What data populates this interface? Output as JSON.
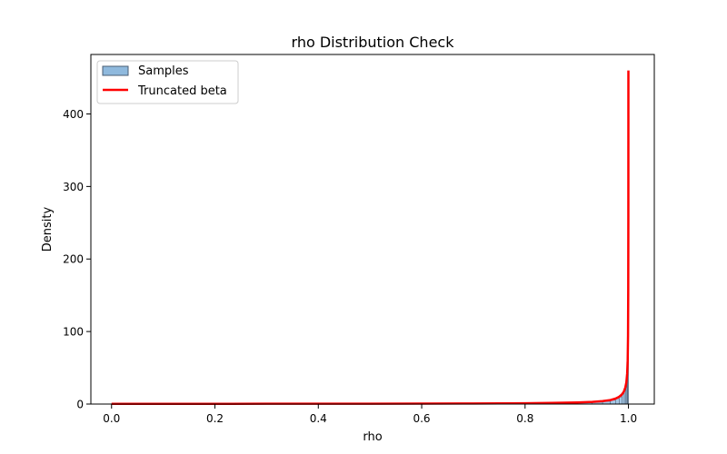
{
  "chart_data": {
    "type": "histogram",
    "title": "rho Distribution Check",
    "xlabel": "rho",
    "ylabel": "Density",
    "xlim": [
      -0.04,
      1.05
    ],
    "ylim": [
      0,
      482
    ],
    "xticks": [
      0.0,
      0.2,
      0.4,
      0.6,
      0.8,
      1.0
    ],
    "xtick_labels": [
      "0.0",
      "0.2",
      "0.4",
      "0.6",
      "0.8",
      "1.0"
    ],
    "yticks": [
      0,
      100,
      200,
      300,
      400
    ],
    "ytick_labels": [
      "0",
      "100",
      "200",
      "300",
      "400"
    ],
    "legend_position": "top-left",
    "legend": [
      {
        "label": "Samples",
        "kind": "patch",
        "color": "#8fb9dd",
        "edge": "#4a5d73"
      },
      {
        "label": "Truncated beta",
        "kind": "line",
        "color": "#ff0000"
      }
    ],
    "series": [
      {
        "name": "Samples",
        "kind": "histogram",
        "color": "#8fb9dd",
        "edgecolor": "#4a5d73",
        "bins": [
          [
            0.0,
            0.9,
            0.6
          ],
          [
            0.9,
            0.93,
            1.6
          ],
          [
            0.93,
            0.95,
            2.6
          ],
          [
            0.95,
            0.965,
            3.8
          ],
          [
            0.965,
            0.975,
            5.5
          ],
          [
            0.975,
            0.982,
            7.5
          ],
          [
            0.982,
            0.988,
            10
          ],
          [
            0.988,
            0.992,
            14
          ],
          [
            0.992,
            0.995,
            19
          ],
          [
            0.995,
            0.997,
            26
          ],
          [
            0.997,
            0.998,
            36
          ],
          [
            0.998,
            0.999,
            48
          ],
          [
            0.999,
            1.0,
            66
          ]
        ]
      },
      {
        "name": "Truncated beta",
        "kind": "line",
        "color": "#ff0000",
        "x": [
          0.0,
          0.1,
          0.2,
          0.3,
          0.4,
          0.5,
          0.6,
          0.7,
          0.8,
          0.85,
          0.9,
          0.93,
          0.95,
          0.965,
          0.975,
          0.982,
          0.987,
          0.991,
          0.994,
          0.996,
          0.9975,
          0.9985,
          0.9992,
          0.9996,
          0.9998,
          0.9999
        ],
        "y": [
          0.3,
          0.3,
          0.35,
          0.4,
          0.45,
          0.5,
          0.6,
          0.8,
          1.1,
          1.5,
          2.2,
          3.0,
          4.0,
          5.5,
          7.5,
          10,
          13,
          17,
          23,
          30,
          42,
          60,
          95,
          160,
          260,
          460
        ]
      }
    ]
  }
}
